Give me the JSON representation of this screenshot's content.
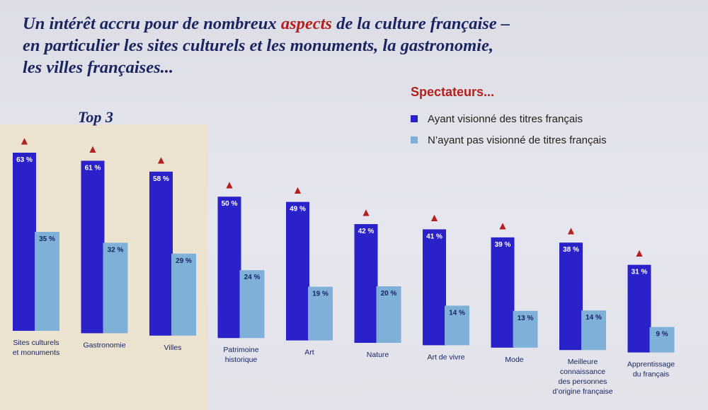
{
  "header": {
    "title_part1": "Un intérêt accru pour de nombreux ",
    "title_accent": "aspects",
    "title_part2": " de la culture française –",
    "title_line2": "en particulier les sites culturels et les monuments, la gastronomie,",
    "title_line3": "les villes françaises..."
  },
  "top3_label": "Top 3",
  "legend": {
    "title": "Spectateurs...",
    "items": [
      "Ayant visionné des titres français",
      "N’ayant pas visionné de titres français"
    ]
  },
  "colors": {
    "watched": "#2a22c8",
    "not_watched": "#7fb0d8",
    "marker": "#b3201e",
    "top3_bg": "#ebe3cf"
  },
  "chart_data": {
    "type": "bar",
    "categories": [
      "Sites culturels et monuments",
      "Gastronomie",
      "Villes",
      "Patrimoine historique",
      "Art",
      "Nature",
      "Art de vivre",
      "Mode",
      "Meilleure connaissance des personnes d’origine française",
      "Apprentissage du français"
    ],
    "series": [
      {
        "name": "Ayant visionné des titres français",
        "values": [
          63,
          61,
          58,
          50,
          49,
          42,
          41,
          39,
          38,
          31
        ],
        "labels": [
          "63 %",
          "61 %",
          "58 %",
          "50 %",
          "49 %",
          "42 %",
          "41 %",
          "39 %",
          "38 %",
          "31 %"
        ]
      },
      {
        "name": "N’ayant pas visionné de titres français",
        "values": [
          35,
          32,
          29,
          24,
          19,
          20,
          14,
          13,
          14,
          9
        ],
        "labels": [
          "35 %",
          "32 %",
          "29 %",
          "24 %",
          "19 %",
          "20 %",
          "14 %",
          "13 %",
          "14 %",
          "9 %"
        ]
      }
    ],
    "significance_marker": "▲",
    "legend_position": "top-right"
  }
}
